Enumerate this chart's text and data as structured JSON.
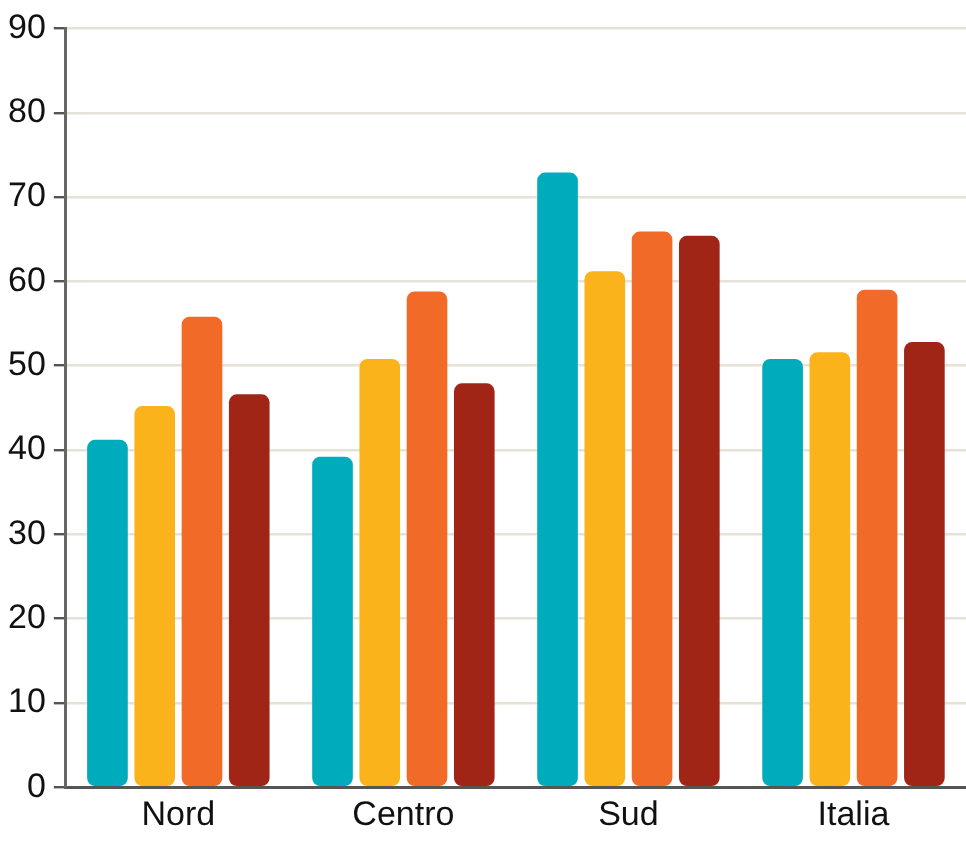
{
  "chart_data": {
    "type": "bar",
    "categories": [
      "Nord",
      "Centro",
      "Sud",
      "Italia"
    ],
    "series": [
      {
        "color": "#00abbb",
        "values": [
          41.2,
          39.2,
          72.9,
          50.8
        ]
      },
      {
        "color": "#fbb31b",
        "values": [
          45.2,
          50.8,
          61.2,
          51.6
        ]
      },
      {
        "color": "#f26a27",
        "values": [
          55.8,
          58.8,
          65.9,
          59.0
        ]
      },
      {
        "color": "#a02516",
        "values": [
          46.6,
          47.9,
          65.4,
          52.8
        ]
      }
    ],
    "ylim": [
      0,
      90
    ],
    "yticks": [
      0,
      10,
      20,
      30,
      40,
      50,
      60,
      70,
      80,
      90
    ],
    "grid": "y",
    "legend": false
  }
}
